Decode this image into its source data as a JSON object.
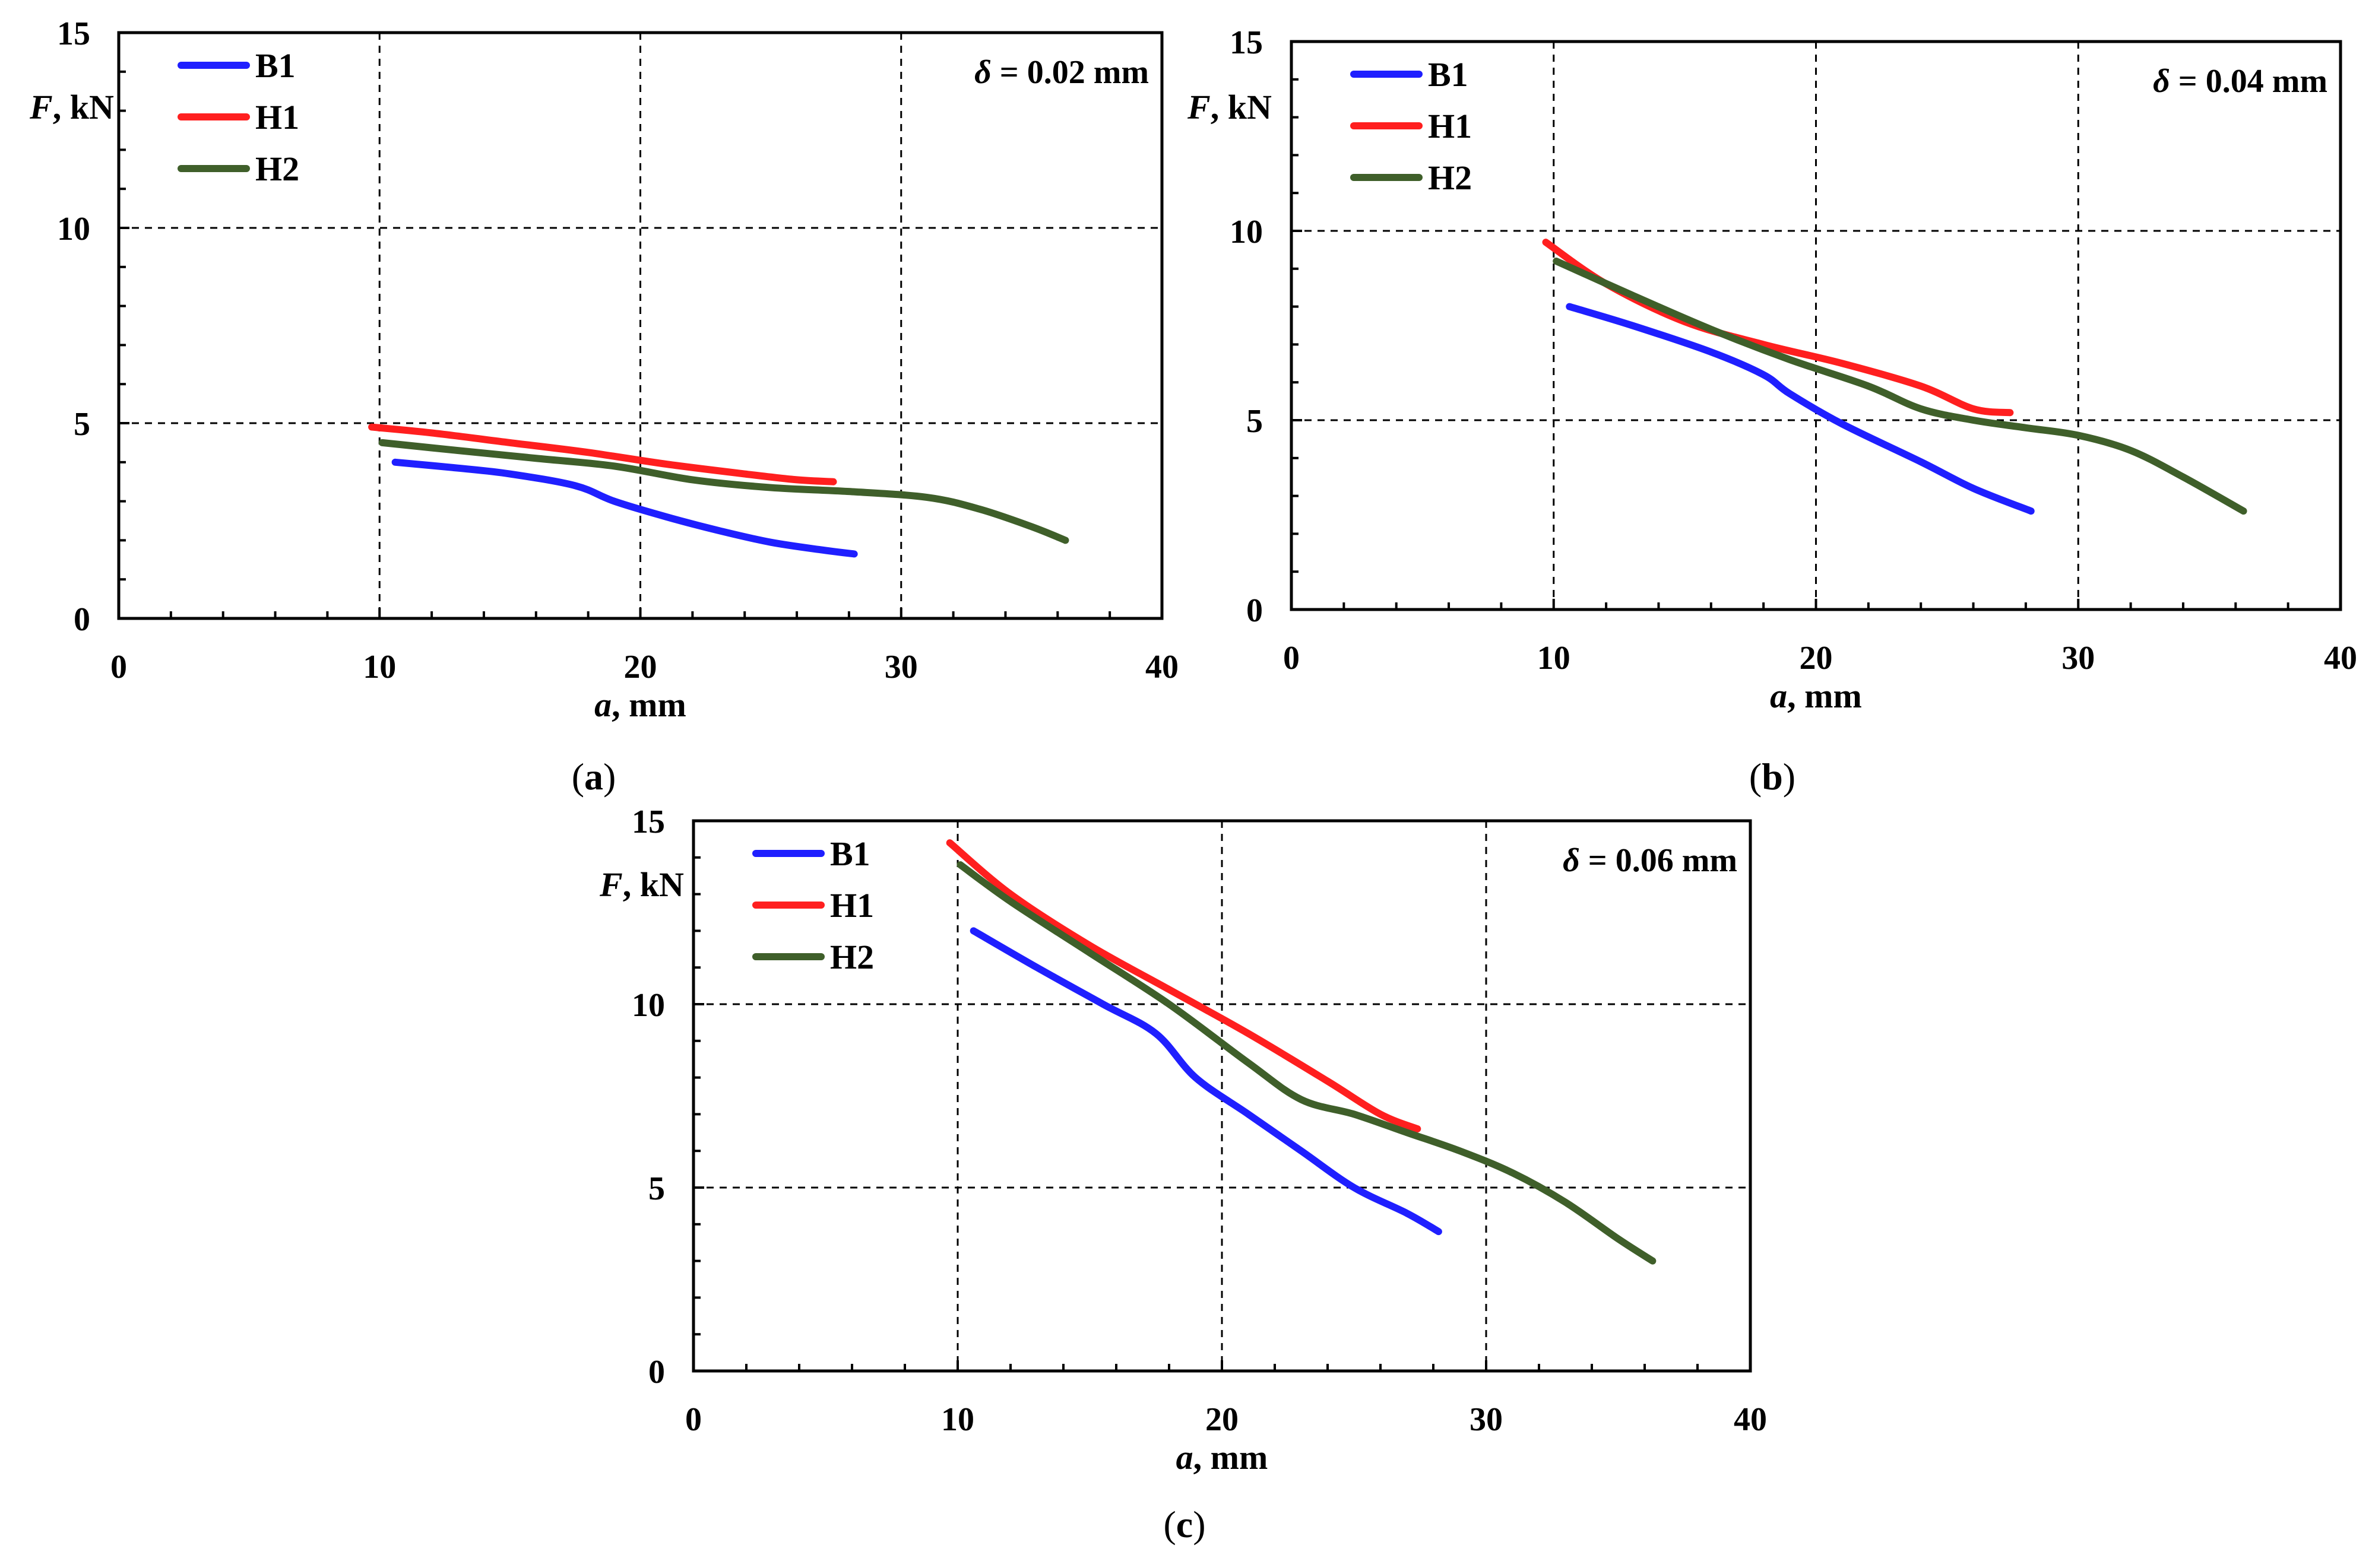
{
  "chart_data": [
    {
      "type": "line",
      "caption_letter": "a",
      "title": "δ = 0.02 mm",
      "title_symbol": "δ",
      "title_value": " = 0.02 mm",
      "xlabel_var": "a",
      "xlabel_unit": ", mm",
      "ylabel_var": "F",
      "ylabel_unit": ", kN",
      "xlim": [
        0,
        40
      ],
      "ylim": [
        0,
        15
      ],
      "xticks": [
        0,
        10,
        20,
        30,
        40
      ],
      "yticks": [
        0,
        5,
        10,
        15
      ],
      "grid": true,
      "legend": "top-left",
      "series": [
        {
          "name": "B1",
          "color": "#1f1fff",
          "x": [
            10.6,
            13,
            15,
            17.5,
            19,
            21,
            23,
            25,
            27,
            28.2
          ],
          "y": [
            4.0,
            3.85,
            3.7,
            3.4,
            3.0,
            2.6,
            2.25,
            1.95,
            1.75,
            1.65
          ]
        },
        {
          "name": "H1",
          "color": "#ff1f1f",
          "x": [
            9.7,
            12,
            15,
            18,
            21,
            24,
            26,
            27.4
          ],
          "y": [
            4.9,
            4.75,
            4.5,
            4.25,
            3.95,
            3.7,
            3.55,
            3.5
          ]
        },
        {
          "name": "H2",
          "color": "#3f5f2a",
          "x": [
            10.1,
            13,
            16,
            19,
            22,
            25,
            28,
            31,
            33,
            35,
            36.3
          ],
          "y": [
            4.5,
            4.3,
            4.1,
            3.9,
            3.55,
            3.35,
            3.25,
            3.1,
            2.8,
            2.35,
            2.0
          ]
        }
      ]
    },
    {
      "type": "line",
      "caption_letter": "b",
      "title": "δ = 0.04 mm",
      "title_symbol": "δ",
      "title_value": " = 0.04 mm",
      "xlabel_var": "a",
      "xlabel_unit": ", mm",
      "ylabel_var": "F",
      "ylabel_unit": ", kN",
      "xlim": [
        0,
        40
      ],
      "ylim": [
        0,
        15
      ],
      "xticks": [
        0,
        10,
        20,
        30,
        40
      ],
      "yticks": [
        0,
        5,
        10,
        15
      ],
      "grid": true,
      "legend": "top-left",
      "series": [
        {
          "name": "B1",
          "color": "#1f1fff",
          "x": [
            10.6,
            13,
            16,
            18,
            19,
            21,
            24,
            26,
            28.2
          ],
          "y": [
            8.0,
            7.5,
            6.8,
            6.2,
            5.7,
            4.9,
            3.9,
            3.2,
            2.6
          ]
        },
        {
          "name": "H1",
          "color": "#ff1f1f",
          "x": [
            9.7,
            12,
            15,
            18,
            21,
            24,
            26,
            27.4
          ],
          "y": [
            9.7,
            8.6,
            7.6,
            7.0,
            6.5,
            5.9,
            5.3,
            5.2
          ]
        },
        {
          "name": "H2",
          "color": "#3f5f2a",
          "x": [
            10.1,
            13,
            16,
            19,
            22,
            24,
            26,
            28,
            30,
            32,
            34,
            36.3
          ],
          "y": [
            9.2,
            8.3,
            7.4,
            6.6,
            5.9,
            5.3,
            5.0,
            4.8,
            4.6,
            4.2,
            3.5,
            2.6
          ]
        }
      ]
    },
    {
      "type": "line",
      "caption_letter": "c",
      "title": "δ = 0.06 mm",
      "title_symbol": "δ",
      "title_value": " = 0.06 mm",
      "xlabel_var": "a",
      "xlabel_unit": ", mm",
      "ylabel_var": "F",
      "ylabel_unit": ", kN",
      "xlim": [
        0,
        40
      ],
      "ylim": [
        0,
        15
      ],
      "xticks": [
        0,
        10,
        20,
        30,
        40
      ],
      "yticks": [
        0,
        5,
        10,
        15
      ],
      "grid": true,
      "legend": "top-left",
      "series": [
        {
          "name": "B1",
          "color": "#1f1fff",
          "x": [
            10.6,
            13,
            15.5,
            17.5,
            19,
            21,
            23,
            25,
            27,
            28.2
          ],
          "y": [
            12.0,
            11.0,
            10.0,
            9.2,
            8.0,
            7.0,
            6.0,
            5.0,
            4.3,
            3.8
          ]
        },
        {
          "name": "H1",
          "color": "#ff1f1f",
          "x": [
            9.7,
            12,
            15,
            18,
            21,
            24,
            26,
            27.4
          ],
          "y": [
            14.4,
            13.0,
            11.6,
            10.4,
            9.2,
            7.9,
            7.0,
            6.6
          ]
        },
        {
          "name": "H2",
          "color": "#3f5f2a",
          "x": [
            10.1,
            12,
            15,
            18,
            21,
            23,
            25,
            27,
            29,
            31,
            33,
            35,
            36.3
          ],
          "y": [
            13.8,
            12.8,
            11.4,
            10.0,
            8.4,
            7.4,
            7.0,
            6.5,
            6.0,
            5.4,
            4.6,
            3.6,
            3.0
          ]
        }
      ]
    }
  ]
}
